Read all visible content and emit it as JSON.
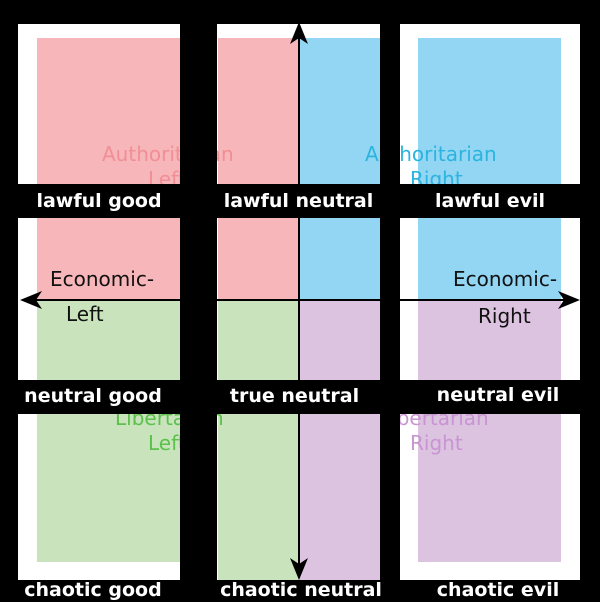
{
  "colors": {
    "authoritarian_left": "#f7b6b9",
    "authoritarian_right": "#92d6f4",
    "libertarian_left": "#c9e3bd",
    "libertarian_right": "#dcc3df",
    "authoritarian_left_text": "#f08f95",
    "authoritarian_right_text": "#2bb4de",
    "libertarian_left_text": "#5cc14b",
    "libertarian_right_text": "#c894d2"
  },
  "quadrant_labels": {
    "auth_left": {
      "line1": "Authoritarian",
      "line2": "Left"
    },
    "auth_right": {
      "line1": "Authoritarian",
      "line2": "Right"
    },
    "lib_left": {
      "line1": "Libertarian",
      "line2": "Left"
    },
    "lib_right": {
      "line1": "Libertarian",
      "line2": "Right"
    }
  },
  "axis_labels": {
    "econ_left": {
      "line1": "Economic-",
      "line2": "Left"
    },
    "econ_right": {
      "line1": "Economic-",
      "line2": "Right"
    }
  },
  "alignments": {
    "lawful_good": "lawful good",
    "lawful_neutral": "lawful neutral",
    "lawful_evil": "lawful evil",
    "neutral_good": "neutral good",
    "true_neutral": "true neutral",
    "neutral_evil": "neutral evil",
    "chaotic_good": "chaotic good",
    "chaotic_neutral": "chaotic neutral",
    "chaotic_evil": "chaotic evil"
  }
}
